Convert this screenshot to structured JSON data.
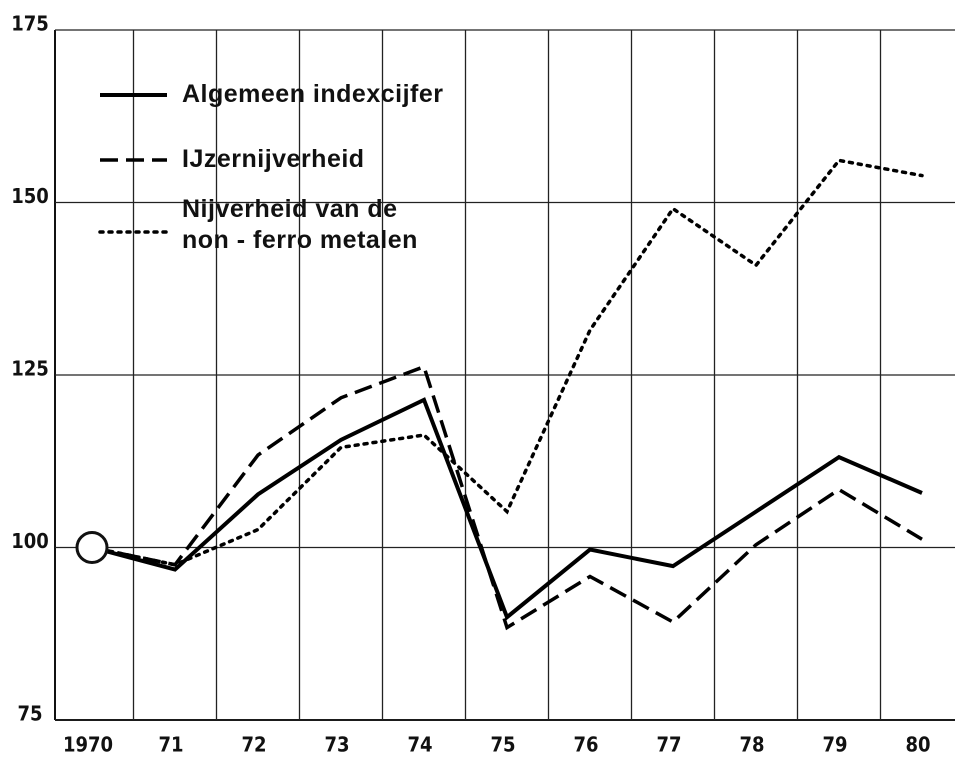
{
  "chart_data": {
    "type": "line",
    "categories": [
      "1970",
      "71",
      "72",
      "73",
      "74",
      "75",
      "76",
      "77",
      "78",
      "79",
      "80"
    ],
    "series": [
      {
        "name": "Algemeen indexcijfer",
        "color": "#000000",
        "style": "solid",
        "values": [
          100,
          96.8,
          107.7,
          115.6,
          121.4,
          89.9,
          99.7,
          97.3,
          105.2,
          113.1,
          107.9
        ]
      },
      {
        "name": "IJzernijverheid",
        "color": "#000000",
        "style": "dashed",
        "values": [
          100,
          97.5,
          113.4,
          121.7,
          126.2,
          88.4,
          95.8,
          89.2,
          100.4,
          108.4,
          101.2
        ]
      },
      {
        "name": "Nijverheid van de\nnon - ferro metalen",
        "color": "#000000",
        "style": "dotted",
        "values": [
          100,
          97.5,
          102.6,
          114.5,
          116.3,
          105.2,
          131.5,
          149.1,
          140.9,
          156.1,
          153.9
        ]
      }
    ],
    "ylim": [
      75,
      175
    ],
    "yticks": [
      75,
      100,
      125,
      150,
      175
    ],
    "grid": true
  }
}
